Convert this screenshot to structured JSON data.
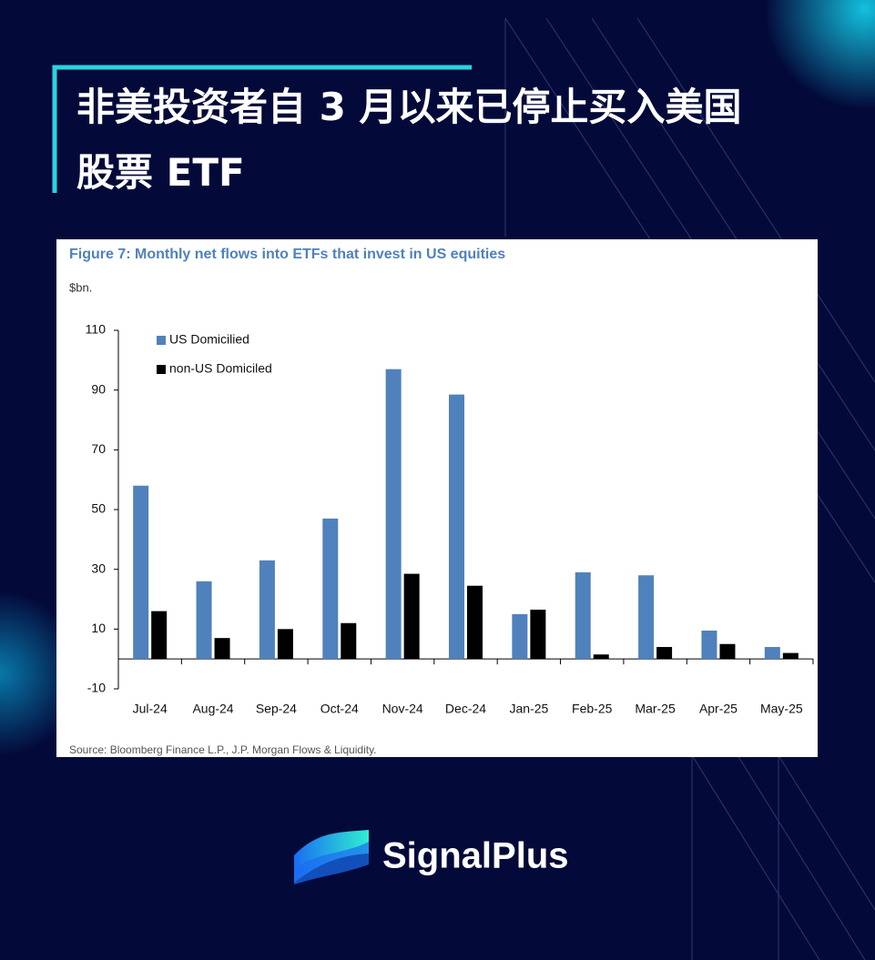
{
  "headline": [
    "非美投资者自 3 月以来已停止买入美国",
    "股票 ETF"
  ],
  "chart_data": {
    "type": "bar",
    "title": "Figure 7: Monthly net flows into ETFs that invest in US equities",
    "y_label": "$bn.",
    "source": "Source: Bloomberg Finance L.P., J.P. Morgan Flows & Liquidity.",
    "categories": [
      "Jul-24",
      "Aug-24",
      "Sep-24",
      "Oct-24",
      "Nov-24",
      "Dec-24",
      "Jan-25",
      "Feb-25",
      "Mar-25",
      "Apr-25",
      "May-25"
    ],
    "series": [
      {
        "name": "US Domicilied",
        "color": "#4f81bd",
        "values": [
          58,
          26,
          33,
          47,
          97,
          88.5,
          15,
          29,
          28,
          9.5,
          4
        ]
      },
      {
        "name": "non-US Domiciled",
        "color": "#000000",
        "values": [
          16,
          7,
          10,
          12,
          28.5,
          24.5,
          16.5,
          1.5,
          4,
          5,
          2
        ]
      }
    ],
    "ylim": [
      -10,
      110
    ],
    "yticks": [
      -10,
      10,
      30,
      50,
      70,
      90,
      110
    ],
    "grid": false,
    "legend": "top-left"
  },
  "brand": "SignalPlus"
}
